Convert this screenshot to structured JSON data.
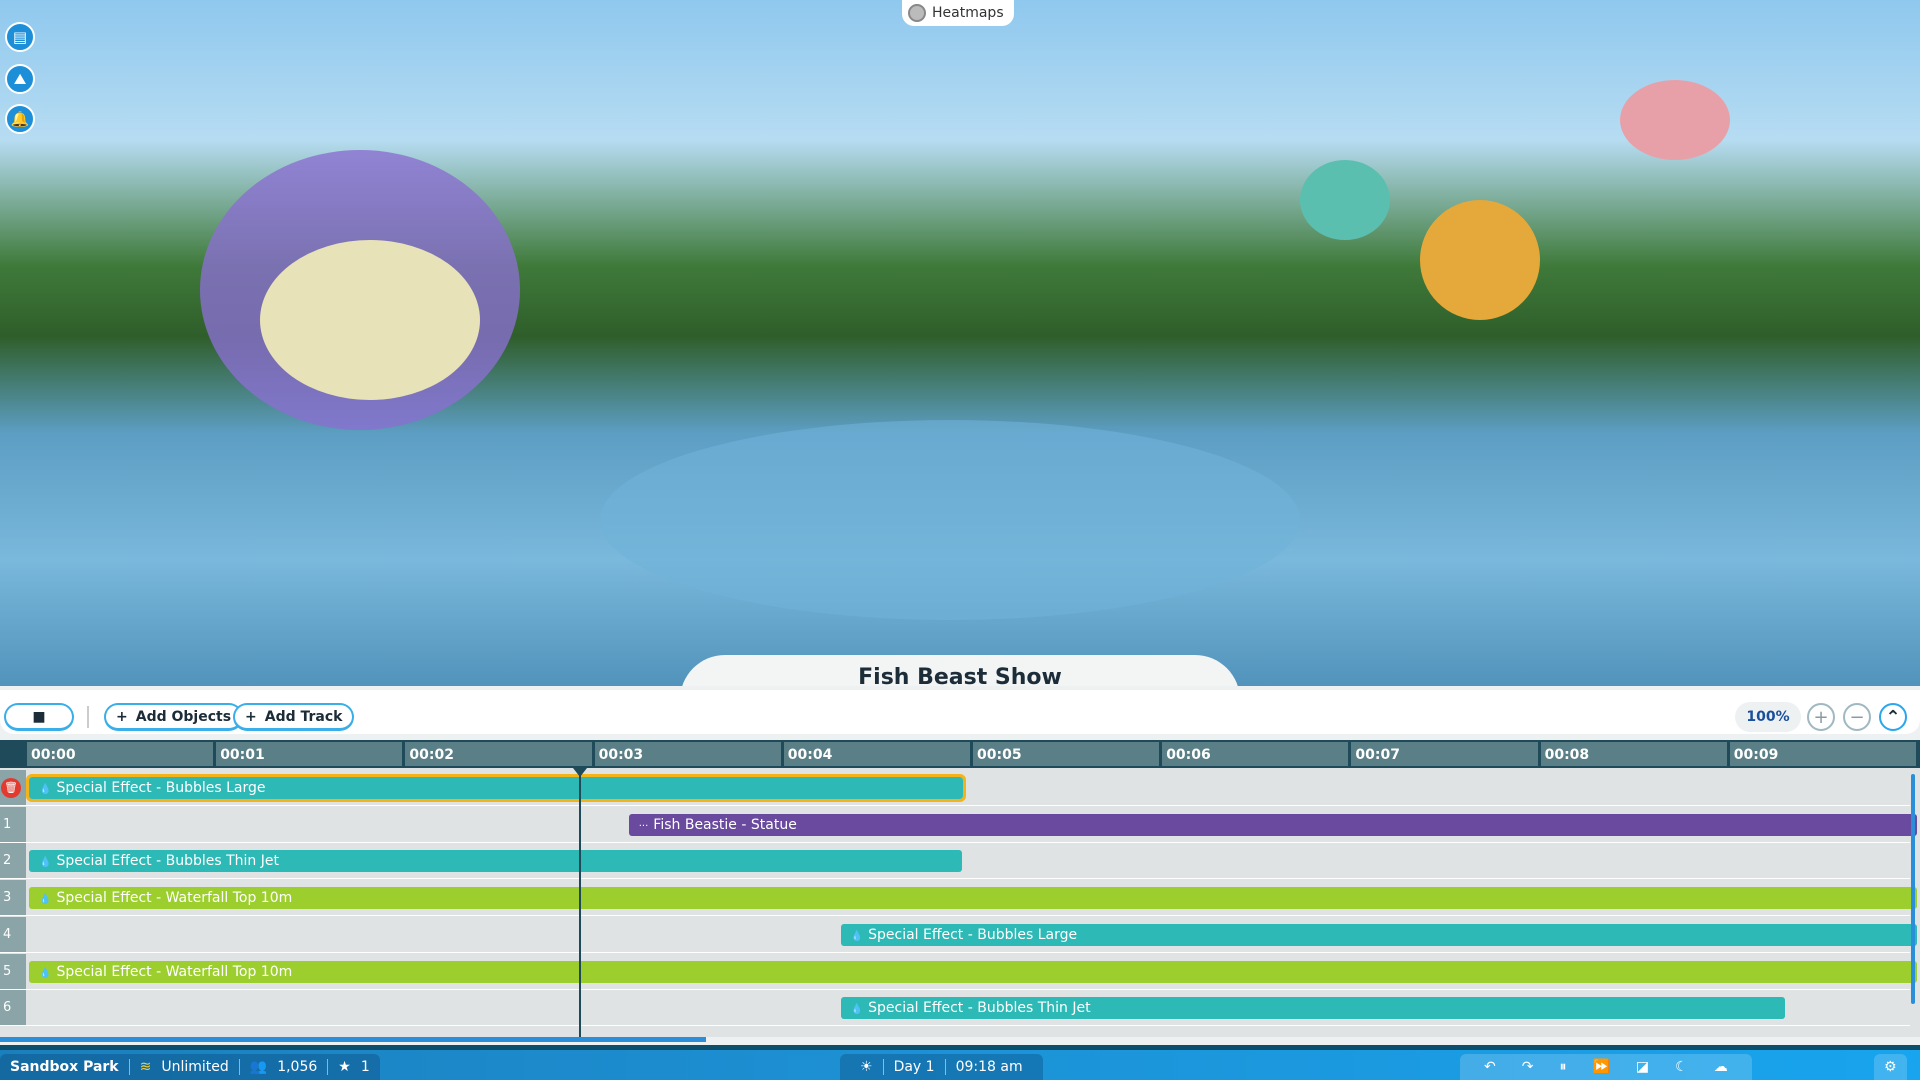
{
  "top": {
    "heatmaps_label": "Heatmaps"
  },
  "left_icons": [
    "clipboard-icon",
    "terrain-icon",
    "bell-icon"
  ],
  "show": {
    "title": "Fish Beast Show"
  },
  "toolbar": {
    "stop_icon": "■",
    "add_objects": "Add Objects",
    "add_track": "Add Track",
    "zoom": "100%",
    "zoom_in": "+",
    "zoom_out": "−",
    "collapse": "^"
  },
  "ruler": [
    "00:00",
    "00:01",
    "00:02",
    "00:03",
    "00:04",
    "00:05",
    "00:06",
    "00:07",
    "00:08",
    "00:09"
  ],
  "tracks": [
    {
      "num": "",
      "label": "Special Effect - Bubbles Large",
      "color": "teal",
      "start": 0,
      "end": 4.96,
      "selected": true,
      "icon": "💧"
    },
    {
      "num": "1",
      "label": "Fish Beastie - Statue",
      "color": "purple",
      "start": 3.17,
      "end": 10,
      "icon": "···"
    },
    {
      "num": "2",
      "label": "Special Effect - Bubbles Thin Jet",
      "color": "teal",
      "start": 0,
      "end": 4.95,
      "icon": "💧"
    },
    {
      "num": "3",
      "label": "Special Effect - Waterfall Top 10m",
      "color": "green",
      "start": 0,
      "end": 10,
      "icon": "💧"
    },
    {
      "num": "4",
      "label": "Special Effect - Bubbles Large",
      "color": "teal",
      "start": 4.29,
      "end": 10,
      "icon": "💧"
    },
    {
      "num": "5",
      "label": "Special Effect - Waterfall Top 10m",
      "color": "green",
      "start": 0,
      "end": 10,
      "icon": "💧"
    },
    {
      "num": "6",
      "label": "Special Effect - Bubbles Thin Jet",
      "color": "teal",
      "start": 4.29,
      "end": 9.3,
      "icon": "💧"
    }
  ],
  "playhead_time": 2.92,
  "status": {
    "park": "Sandbox Park",
    "money": "Unlimited",
    "guests": "1,056",
    "rating": "1",
    "day": "Day 1",
    "time": "09:18 am"
  }
}
